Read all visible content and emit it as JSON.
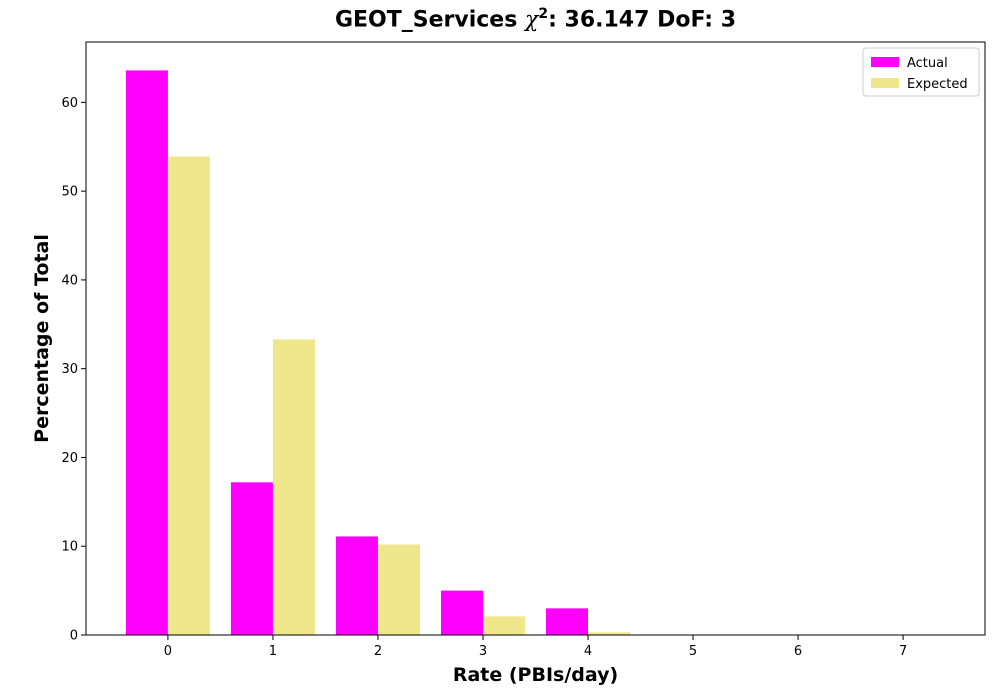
{
  "chart_data": {
    "type": "bar",
    "title_prefix": "GEOT_Services ",
    "title_symbol": "χ",
    "title_exponent": "2",
    "title_suffix": ": 36.147 DoF: 3",
    "xlabel": "Rate (PBIs/day)",
    "ylabel": "Percentage of Total",
    "categories": [
      "0",
      "1",
      "2",
      "3",
      "4",
      "5",
      "6",
      "7"
    ],
    "x": [
      0,
      1,
      2,
      3,
      4,
      5,
      6,
      7
    ],
    "xlim": [
      -0.78,
      7.78
    ],
    "ylim": [
      0,
      66.8
    ],
    "yticks": [
      0,
      10,
      20,
      30,
      40,
      50,
      60
    ],
    "grid": false,
    "legend_position": "top-right",
    "series": [
      {
        "name": "Actual",
        "color": "#ff00ff",
        "values": [
          63.6,
          17.2,
          11.1,
          5.0,
          3.0,
          0.0,
          0.0,
          0.0
        ]
      },
      {
        "name": "Expected",
        "color": "#f0e68c",
        "values": [
          53.9,
          33.3,
          10.2,
          2.1,
          0.3,
          0.04,
          0.0,
          0.0
        ]
      }
    ]
  }
}
